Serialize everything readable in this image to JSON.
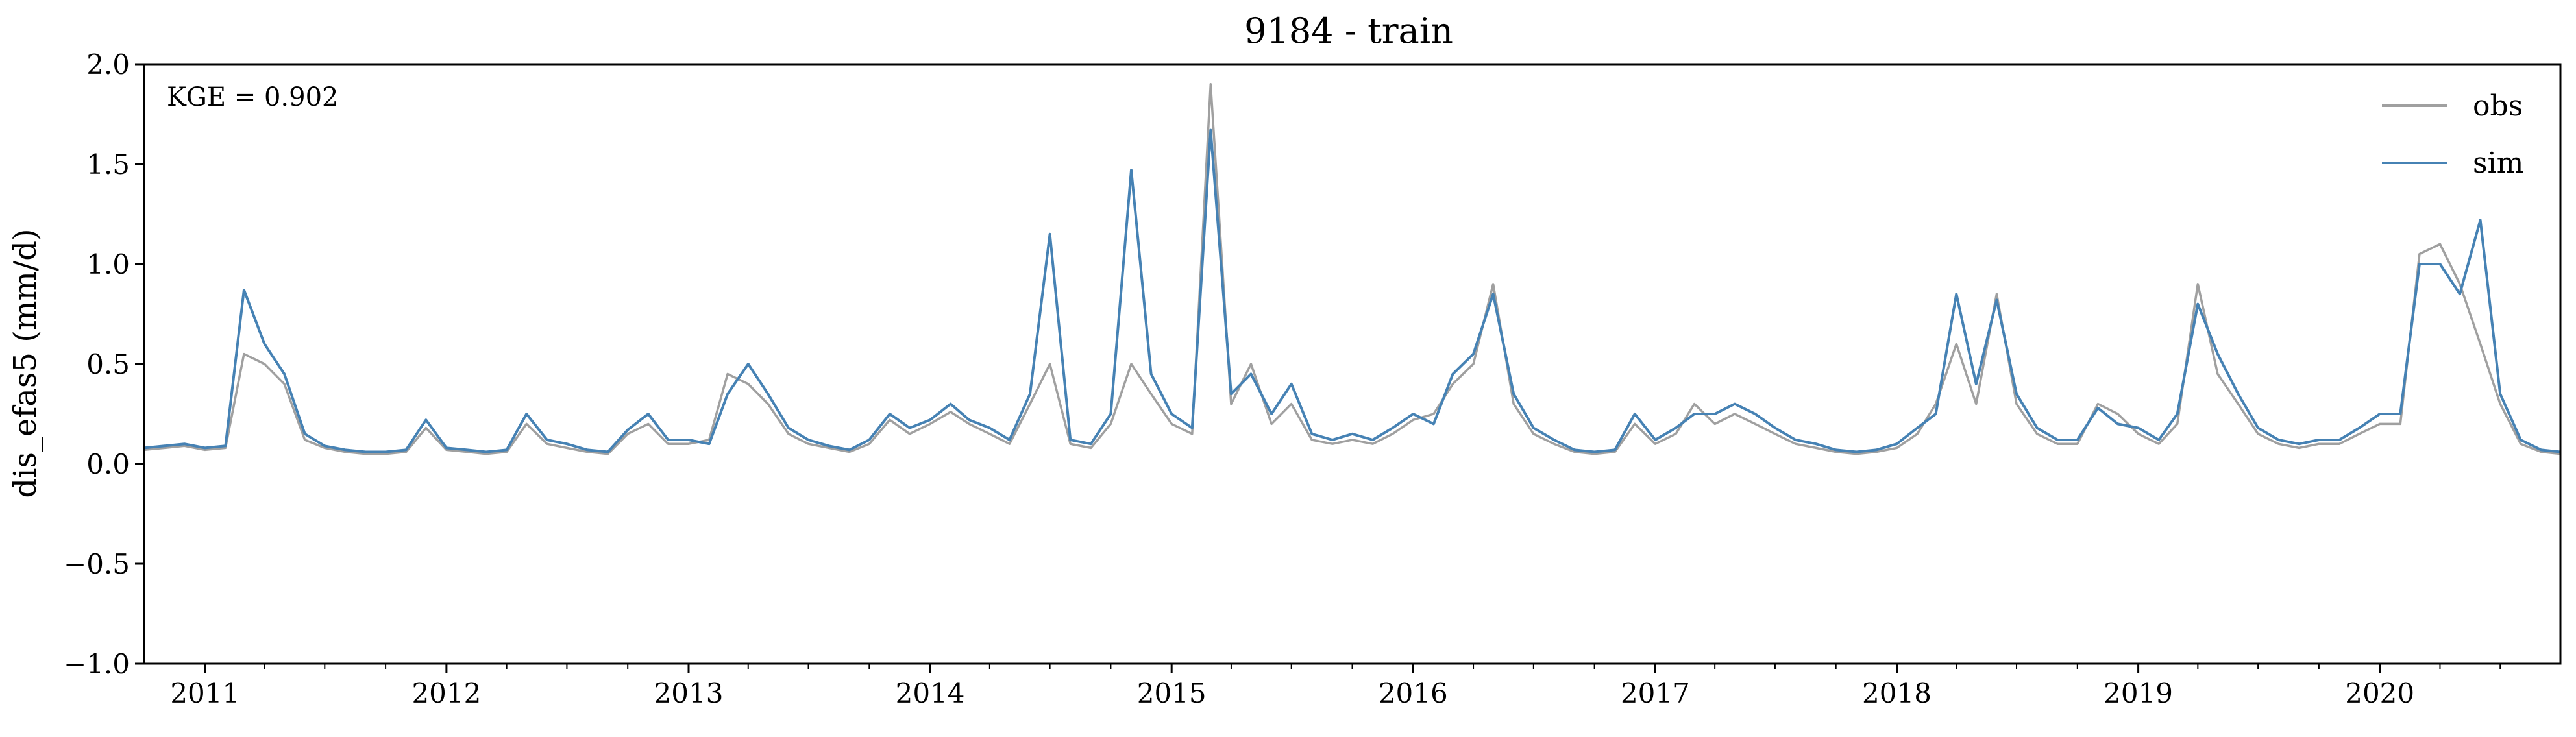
{
  "chart_data": {
    "type": "line",
    "title": "9184 - train",
    "xlabel": "",
    "ylabel": "dis_efas5 (mm/d)",
    "annotation": "KGE = 0.902",
    "ylim": [
      -1.0,
      2.0
    ],
    "xlim": [
      "2010-10-01",
      "2020-09-30"
    ],
    "yticks": [
      -1.0,
      -0.5,
      0.0,
      0.5,
      1.0,
      1.5,
      2.0
    ],
    "ytick_labels": [
      "−1.0",
      "−0.5",
      "0.0",
      "0.5",
      "1.0",
      "1.5",
      "2.0"
    ],
    "xticks": [
      "2011-01-01",
      "2012-01-01",
      "2013-01-01",
      "2014-01-01",
      "2015-01-01",
      "2016-01-01",
      "2017-01-01",
      "2018-01-01",
      "2019-01-01",
      "2020-01-01"
    ],
    "xtick_labels": [
      "2011",
      "2012",
      "2013",
      "2014",
      "2015",
      "2016",
      "2017",
      "2018",
      "2019",
      "2020"
    ],
    "grid": false,
    "legend": {
      "placement": "top-right",
      "entries": [
        {
          "name": "obs",
          "color": "#a0a0a0"
        },
        {
          "name": "sim",
          "color": "#4682b4"
        }
      ]
    },
    "series": [
      {
        "name": "obs",
        "color": "#a0a0a0",
        "x": [
          "2010-10-01",
          "2010-11-01",
          "2010-12-01",
          "2011-01-01",
          "2011-02-01",
          "2011-03-01",
          "2011-04-01",
          "2011-05-01",
          "2011-06-01",
          "2011-07-01",
          "2011-08-01",
          "2011-09-01",
          "2011-10-01",
          "2011-11-01",
          "2011-12-01",
          "2012-01-01",
          "2012-02-01",
          "2012-03-01",
          "2012-04-01",
          "2012-05-01",
          "2012-06-01",
          "2012-07-01",
          "2012-08-01",
          "2012-09-01",
          "2012-10-01",
          "2012-11-01",
          "2012-12-01",
          "2013-01-01",
          "2013-02-01",
          "2013-03-01",
          "2013-04-01",
          "2013-05-01",
          "2013-06-01",
          "2013-07-01",
          "2013-08-01",
          "2013-09-01",
          "2013-10-01",
          "2013-11-01",
          "2013-12-01",
          "2014-01-01",
          "2014-02-01",
          "2014-03-01",
          "2014-04-01",
          "2014-05-01",
          "2014-06-01",
          "2014-07-01",
          "2014-08-01",
          "2014-09-01",
          "2014-10-01",
          "2014-11-01",
          "2014-12-01",
          "2015-01-01",
          "2015-02-01",
          "2015-03-01",
          "2015-04-01",
          "2015-05-01",
          "2015-06-01",
          "2015-07-01",
          "2015-08-01",
          "2015-09-01",
          "2015-10-01",
          "2015-11-01",
          "2015-12-01",
          "2016-01-01",
          "2016-02-01",
          "2016-03-01",
          "2016-04-01",
          "2016-05-01",
          "2016-06-01",
          "2016-07-01",
          "2016-08-01",
          "2016-09-01",
          "2016-10-01",
          "2016-11-01",
          "2016-12-01",
          "2017-01-01",
          "2017-02-01",
          "2017-03-01",
          "2017-04-01",
          "2017-05-01",
          "2017-06-01",
          "2017-07-01",
          "2017-08-01",
          "2017-09-01",
          "2017-10-01",
          "2017-11-01",
          "2017-12-01",
          "2018-01-01",
          "2018-02-01",
          "2018-03-01",
          "2018-04-01",
          "2018-05-01",
          "2018-06-01",
          "2018-07-01",
          "2018-08-01",
          "2018-09-01",
          "2018-10-01",
          "2018-11-01",
          "2018-12-01",
          "2019-01-01",
          "2019-02-01",
          "2019-03-01",
          "2019-04-01",
          "2019-05-01",
          "2019-06-01",
          "2019-07-01",
          "2019-08-01",
          "2019-09-01",
          "2019-10-01",
          "2019-11-01",
          "2019-12-01",
          "2020-01-01",
          "2020-02-01",
          "2020-03-01",
          "2020-04-01",
          "2020-05-01",
          "2020-06-01",
          "2020-07-01",
          "2020-08-01",
          "2020-09-01",
          "2020-09-30"
        ],
        "y": [
          0.07,
          0.08,
          0.09,
          0.07,
          0.08,
          0.55,
          0.5,
          0.4,
          0.12,
          0.08,
          0.06,
          0.05,
          0.05,
          0.06,
          0.18,
          0.07,
          0.06,
          0.05,
          0.06,
          0.2,
          0.1,
          0.08,
          0.06,
          0.05,
          0.15,
          0.2,
          0.1,
          0.1,
          0.12,
          0.45,
          0.4,
          0.3,
          0.15,
          0.1,
          0.08,
          0.06,
          0.1,
          0.22,
          0.15,
          0.2,
          0.26,
          0.2,
          0.15,
          0.1,
          0.3,
          0.5,
          0.1,
          0.08,
          0.2,
          0.5,
          0.35,
          0.2,
          0.15,
          1.9,
          0.3,
          0.5,
          0.2,
          0.3,
          0.12,
          0.1,
          0.12,
          0.1,
          0.15,
          0.22,
          0.25,
          0.4,
          0.5,
          0.9,
          0.3,
          0.15,
          0.1,
          0.06,
          0.05,
          0.06,
          0.2,
          0.1,
          0.15,
          0.3,
          0.2,
          0.25,
          0.2,
          0.15,
          0.1,
          0.08,
          0.06,
          0.05,
          0.06,
          0.08,
          0.15,
          0.3,
          0.6,
          0.3,
          0.85,
          0.3,
          0.15,
          0.1,
          0.1,
          0.3,
          0.25,
          0.15,
          0.1,
          0.2,
          0.9,
          0.45,
          0.3,
          0.15,
          0.1,
          0.08,
          0.1,
          0.1,
          0.15,
          0.2,
          0.2,
          1.05,
          1.1,
          0.9,
          0.6,
          0.3,
          0.1,
          0.06,
          0.05
        ]
      },
      {
        "name": "sim",
        "color": "#4682b4",
        "x": [
          "2010-10-01",
          "2010-11-01",
          "2010-12-01",
          "2011-01-01",
          "2011-02-01",
          "2011-03-01",
          "2011-04-01",
          "2011-05-01",
          "2011-06-01",
          "2011-07-01",
          "2011-08-01",
          "2011-09-01",
          "2011-10-01",
          "2011-11-01",
          "2011-12-01",
          "2012-01-01",
          "2012-02-01",
          "2012-03-01",
          "2012-04-01",
          "2012-05-01",
          "2012-06-01",
          "2012-07-01",
          "2012-08-01",
          "2012-09-01",
          "2012-10-01",
          "2012-11-01",
          "2012-12-01",
          "2013-01-01",
          "2013-02-01",
          "2013-03-01",
          "2013-04-01",
          "2013-05-01",
          "2013-06-01",
          "2013-07-01",
          "2013-08-01",
          "2013-09-01",
          "2013-10-01",
          "2013-11-01",
          "2013-12-01",
          "2014-01-01",
          "2014-02-01",
          "2014-03-01",
          "2014-04-01",
          "2014-05-01",
          "2014-06-01",
          "2014-07-01",
          "2014-08-01",
          "2014-09-01",
          "2014-10-01",
          "2014-11-01",
          "2014-12-01",
          "2015-01-01",
          "2015-02-01",
          "2015-03-01",
          "2015-04-01",
          "2015-05-01",
          "2015-06-01",
          "2015-07-01",
          "2015-08-01",
          "2015-09-01",
          "2015-10-01",
          "2015-11-01",
          "2015-12-01",
          "2016-01-01",
          "2016-02-01",
          "2016-03-01",
          "2016-04-01",
          "2016-05-01",
          "2016-06-01",
          "2016-07-01",
          "2016-08-01",
          "2016-09-01",
          "2016-10-01",
          "2016-11-01",
          "2016-12-01",
          "2017-01-01",
          "2017-02-01",
          "2017-03-01",
          "2017-04-01",
          "2017-05-01",
          "2017-06-01",
          "2017-07-01",
          "2017-08-01",
          "2017-09-01",
          "2017-10-01",
          "2017-11-01",
          "2017-12-01",
          "2018-01-01",
          "2018-02-01",
          "2018-03-01",
          "2018-04-01",
          "2018-05-01",
          "2018-06-01",
          "2018-07-01",
          "2018-08-01",
          "2018-09-01",
          "2018-10-01",
          "2018-11-01",
          "2018-12-01",
          "2019-01-01",
          "2019-02-01",
          "2019-03-01",
          "2019-04-01",
          "2019-05-01",
          "2019-06-01",
          "2019-07-01",
          "2019-08-01",
          "2019-09-01",
          "2019-10-01",
          "2019-11-01",
          "2019-12-01",
          "2020-01-01",
          "2020-02-01",
          "2020-03-01",
          "2020-04-01",
          "2020-05-01",
          "2020-06-01",
          "2020-07-01",
          "2020-08-01",
          "2020-09-01",
          "2020-09-30"
        ],
        "y": [
          0.08,
          0.09,
          0.1,
          0.08,
          0.09,
          0.87,
          0.6,
          0.45,
          0.15,
          0.09,
          0.07,
          0.06,
          0.06,
          0.07,
          0.22,
          0.08,
          0.07,
          0.06,
          0.07,
          0.25,
          0.12,
          0.1,
          0.07,
          0.06,
          0.17,
          0.25,
          0.12,
          0.12,
          0.1,
          0.35,
          0.5,
          0.35,
          0.18,
          0.12,
          0.09,
          0.07,
          0.12,
          0.25,
          0.18,
          0.22,
          0.3,
          0.22,
          0.18,
          0.12,
          0.35,
          1.15,
          0.12,
          0.1,
          0.25,
          1.47,
          0.45,
          0.25,
          0.18,
          1.67,
          0.35,
          0.45,
          0.25,
          0.4,
          0.15,
          0.12,
          0.15,
          0.12,
          0.18,
          0.25,
          0.2,
          0.45,
          0.55,
          0.85,
          0.35,
          0.18,
          0.12,
          0.07,
          0.06,
          0.07,
          0.25,
          0.12,
          0.18,
          0.25,
          0.25,
          0.3,
          0.25,
          0.18,
          0.12,
          0.1,
          0.07,
          0.06,
          0.07,
          0.1,
          0.18,
          0.25,
          0.85,
          0.4,
          0.82,
          0.35,
          0.18,
          0.12,
          0.12,
          0.28,
          0.2,
          0.18,
          0.12,
          0.25,
          0.8,
          0.55,
          0.35,
          0.18,
          0.12,
          0.1,
          0.12,
          0.12,
          0.18,
          0.25,
          0.25,
          1.0,
          1.0,
          0.85,
          1.22,
          0.35,
          0.12,
          0.07,
          0.06
        ]
      }
    ]
  }
}
